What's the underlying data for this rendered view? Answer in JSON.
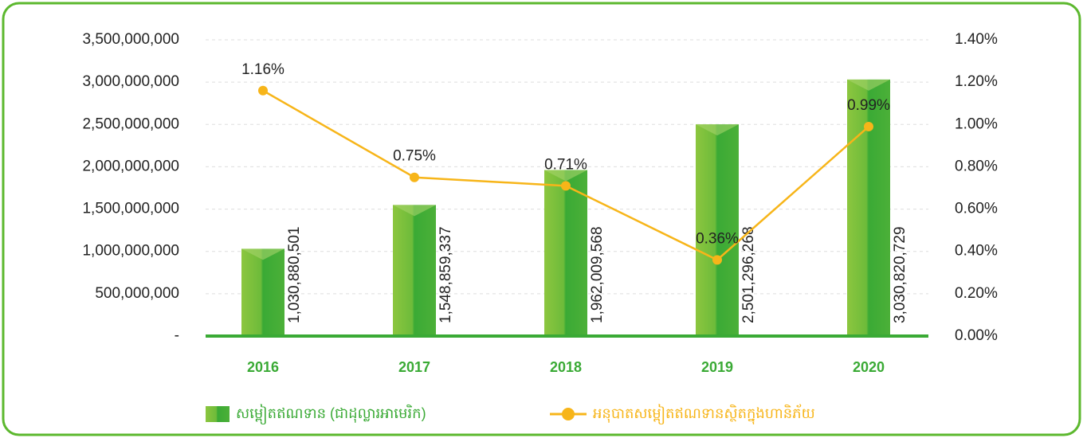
{
  "chart_data": {
    "type": "bar",
    "categories": [
      "2016",
      "2017",
      "2018",
      "2019",
      "2020"
    ],
    "series": [
      {
        "name": "សម្ពៀតឥណទាន (ជាដុល្លារអាមេរិក)",
        "type": "bar",
        "color": "#3aaa35",
        "values": [
          1030880501,
          1548859337,
          1962009568,
          2501296268,
          3030820729
        ],
        "value_labels": [
          "1,030,880,501",
          "1,548,859,337",
          "1,962,009,568",
          "2,501,296,268",
          "3,030,820,729"
        ]
      },
      {
        "name": "អនុបាតសម្ពៀតឥណទានស្ថិតក្នុងហានិភ័យ",
        "type": "line",
        "axis": "y2",
        "color": "#f7b519",
        "values": [
          1.16,
          0.75,
          0.71,
          0.36,
          0.99
        ],
        "value_labels": [
          "1.16%",
          "0.75%",
          "0.71%",
          "0.36%",
          "0.99%"
        ]
      }
    ],
    "ylim": [
      0,
      3500000000
    ],
    "yticks": [
      {
        "value": 0,
        "label": "-"
      },
      {
        "value": 500000000,
        "label": "500,000,000"
      },
      {
        "value": 1000000000,
        "label": "1,000,000,000"
      },
      {
        "value": 1500000000,
        "label": "1,500,000,000"
      },
      {
        "value": 2000000000,
        "label": "2,000,000,000"
      },
      {
        "value": 2500000000,
        "label": "2,500,000,000"
      },
      {
        "value": 3000000000,
        "label": "3,000,000,000"
      },
      {
        "value": 3500000000,
        "label": "3,500,000,000"
      }
    ],
    "y2lim": [
      0,
      1.4
    ],
    "y2ticks": [
      {
        "value": 0,
        "label": "0.00%"
      },
      {
        "value": 0.2,
        "label": "0.20%"
      },
      {
        "value": 0.4,
        "label": "0.40%"
      },
      {
        "value": 0.6,
        "label": "0.60%"
      },
      {
        "value": 0.8,
        "label": "0.80%"
      },
      {
        "value": 1.0,
        "label": "1.00%"
      },
      {
        "value": 1.2,
        "label": "1.20%"
      },
      {
        "value": 1.4,
        "label": "1.40%"
      }
    ],
    "grid": true,
    "legend": "bottom"
  }
}
